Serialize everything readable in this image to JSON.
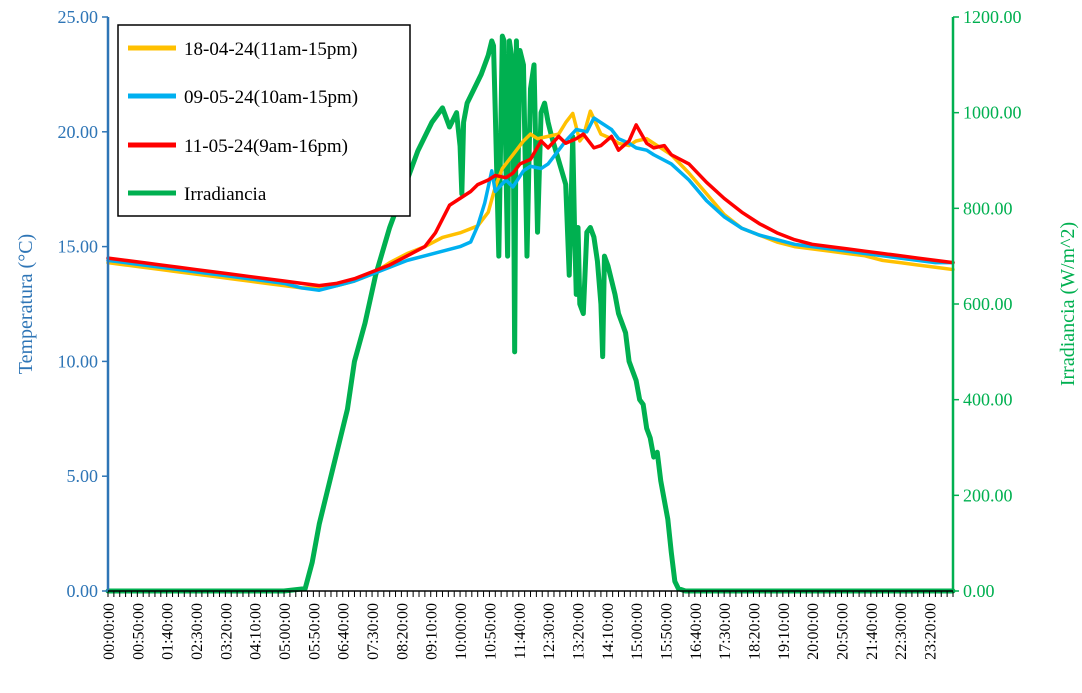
{
  "chart_data": {
    "type": "line",
    "ylabel": "Temperatura (°C)",
    "y2label": "Irradiancia (W/m^2)",
    "ylim": [
      0,
      25
    ],
    "y2lim": [
      0,
      1200
    ],
    "yticks": [
      "0.00",
      "5.00",
      "10.00",
      "15.00",
      "20.00",
      "25.00"
    ],
    "y2ticks": [
      "0.00",
      "200.00",
      "400.00",
      "600.00",
      "800.00",
      "1000.00",
      "1200.00"
    ],
    "x_tick_labels": [
      "00:00:00",
      "00:50:00",
      "01:40:00",
      "02:30:00",
      "03:20:00",
      "04:10:00",
      "05:00:00",
      "05:50:00",
      "06:40:00",
      "07:30:00",
      "08:20:00",
      "09:10:00",
      "10:00:00",
      "10:50:00",
      "11:40:00",
      "12:30:00",
      "13:20:00",
      "14:10:00",
      "15:00:00",
      "15:50:00",
      "16:40:00",
      "17:30:00",
      "18:20:00",
      "19:10:00",
      "20:00:00",
      "20:50:00",
      "21:40:00",
      "22:30:00",
      "23:20:00"
    ],
    "x_tick_hours": [
      0,
      0.8333,
      1.6667,
      2.5,
      3.3333,
      4.1667,
      5,
      5.8333,
      6.6667,
      7.5,
      8.3333,
      9.1667,
      10,
      10.8333,
      11.6667,
      12.5,
      13.3333,
      14.1667,
      15,
      15.8333,
      16.6667,
      17.5,
      18.3333,
      19.1667,
      20,
      20.8333,
      21.6667,
      22.5,
      23.3333
    ],
    "xlim_hours": [
      0,
      24
    ],
    "legend_position": "top-left",
    "series": [
      {
        "name": "18-04-24(11am-15pm)",
        "axis": "left",
        "color": "#ffc000",
        "x": [
          0,
          0.5,
          1,
          1.5,
          2,
          2.5,
          3,
          3.5,
          4,
          4.5,
          5,
          5.5,
          6,
          6.5,
          7,
          7.5,
          8,
          8.5,
          9,
          9.5,
          10,
          10.5,
          10.8,
          11,
          11.2,
          11.5,
          11.8,
          12,
          12.2,
          12.5,
          12.8,
          13,
          13.2,
          13.4,
          13.5,
          13.7,
          14,
          14.3,
          14.5,
          14.8,
          15,
          15.3,
          15.5,
          16,
          16.5,
          17,
          17.5,
          18,
          18.5,
          19,
          19.5,
          20,
          20.5,
          21,
          21.5,
          22,
          22.5,
          23,
          23.5,
          24
        ],
        "y": [
          14.3,
          14.2,
          14.1,
          14.0,
          13.9,
          13.8,
          13.7,
          13.6,
          13.5,
          13.4,
          13.3,
          13.2,
          13.2,
          13.3,
          13.5,
          13.8,
          14.3,
          14.7,
          15.0,
          15.4,
          15.6,
          15.9,
          16.5,
          17.6,
          18.4,
          19.0,
          19.6,
          19.9,
          19.7,
          19.8,
          19.9,
          20.4,
          20.8,
          19.6,
          19.8,
          20.9,
          19.9,
          19.7,
          19.5,
          19.4,
          19.6,
          19.7,
          19.5,
          19.0,
          18.2,
          17.3,
          16.4,
          15.8,
          15.5,
          15.2,
          15.0,
          14.9,
          14.8,
          14.7,
          14.6,
          14.4,
          14.3,
          14.2,
          14.1,
          14.0
        ]
      },
      {
        "name": "09-05-24(10am-15pm)",
        "axis": "left",
        "color": "#00b0f0",
        "x": [
          0,
          0.5,
          1,
          1.5,
          2,
          2.5,
          3,
          3.5,
          4,
          4.5,
          5,
          5.5,
          6,
          6.5,
          7,
          7.5,
          8,
          8.5,
          9,
          9.5,
          10,
          10.3,
          10.5,
          10.7,
          10.9,
          11,
          11.3,
          11.5,
          11.8,
          12,
          12.3,
          12.5,
          12.8,
          13,
          13.3,
          13.6,
          13.8,
          14,
          14.3,
          14.5,
          14.8,
          15,
          15.3,
          15.5,
          16,
          16.5,
          17,
          17.5,
          18,
          18.5,
          19,
          19.5,
          20,
          20.5,
          21,
          21.5,
          22,
          22.5,
          23,
          23.5,
          24
        ],
        "y": [
          14.4,
          14.3,
          14.2,
          14.1,
          14.0,
          13.9,
          13.8,
          13.7,
          13.6,
          13.5,
          13.4,
          13.2,
          13.1,
          13.3,
          13.5,
          13.8,
          14.1,
          14.4,
          14.6,
          14.8,
          15.0,
          15.2,
          15.9,
          16.9,
          18.3,
          17.4,
          17.9,
          17.6,
          18.3,
          18.5,
          18.4,
          18.6,
          19.2,
          19.6,
          20.1,
          20.0,
          20.6,
          20.4,
          20.1,
          19.7,
          19.5,
          19.3,
          19.2,
          19.0,
          18.6,
          17.9,
          17.0,
          16.3,
          15.8,
          15.5,
          15.3,
          15.1,
          15.0,
          14.9,
          14.8,
          14.7,
          14.6,
          14.5,
          14.4,
          14.3,
          14.3
        ]
      },
      {
        "name": "11-05-24(9am-16pm)",
        "axis": "left",
        "color": "#ff0000",
        "x": [
          0,
          0.5,
          1,
          1.5,
          2,
          2.5,
          3,
          3.5,
          4,
          4.5,
          5,
          5.5,
          6,
          6.5,
          7,
          7.5,
          8,
          8.5,
          9,
          9.3,
          9.5,
          9.7,
          10,
          10.3,
          10.5,
          10.8,
          11,
          11.3,
          11.5,
          11.7,
          12,
          12.3,
          12.5,
          12.8,
          13,
          13.3,
          13.5,
          13.8,
          14,
          14.3,
          14.5,
          14.8,
          15,
          15.3,
          15.5,
          15.8,
          16,
          16.5,
          17,
          17.5,
          18,
          18.5,
          19,
          19.5,
          20,
          20.5,
          21,
          21.5,
          22,
          22.5,
          23,
          23.5,
          24
        ],
        "y": [
          14.5,
          14.4,
          14.3,
          14.2,
          14.1,
          14.0,
          13.9,
          13.8,
          13.7,
          13.6,
          13.5,
          13.4,
          13.3,
          13.4,
          13.6,
          13.9,
          14.2,
          14.6,
          15.0,
          15.6,
          16.2,
          16.8,
          17.1,
          17.4,
          17.7,
          17.9,
          18.1,
          18.0,
          18.2,
          18.6,
          18.8,
          19.6,
          19.3,
          19.8,
          19.5,
          19.7,
          19.9,
          19.3,
          19.4,
          19.8,
          19.2,
          19.6,
          20.3,
          19.5,
          19.3,
          19.4,
          19.0,
          18.6,
          17.8,
          17.1,
          16.5,
          16.0,
          15.6,
          15.3,
          15.1,
          15.0,
          14.9,
          14.8,
          14.7,
          14.6,
          14.5,
          14.4,
          14.3
        ]
      },
      {
        "name": "Irradiancia",
        "axis": "right",
        "color": "#00b050",
        "x": [
          0,
          5,
          5.6,
          5.8,
          6.0,
          6.2,
          6.4,
          6.6,
          6.8,
          7.0,
          7.3,
          7.6,
          8.0,
          8.4,
          8.8,
          9.2,
          9.5,
          9.7,
          9.9,
          10.0,
          10.05,
          10.1,
          10.2,
          10.4,
          10.6,
          10.8,
          10.9,
          10.95,
          11.0,
          11.1,
          11.2,
          11.25,
          11.3,
          11.35,
          11.4,
          11.5,
          11.55,
          11.6,
          11.65,
          11.7,
          11.8,
          11.9,
          12.0,
          12.1,
          12.2,
          12.3,
          12.4,
          12.5,
          12.6,
          12.8,
          13.0,
          13.1,
          13.2,
          13.25,
          13.3,
          13.35,
          13.4,
          13.5,
          13.6,
          13.7,
          13.8,
          13.9,
          14.0,
          14.05,
          14.1,
          14.2,
          14.3,
          14.4,
          14.5,
          14.6,
          14.7,
          14.8,
          14.9,
          15.0,
          15.1,
          15.2,
          15.3,
          15.4,
          15.5,
          15.6,
          15.7,
          15.8,
          15.9,
          16.0,
          16.1,
          16.2,
          16.4,
          16.6,
          16.8,
          17.0,
          17.5,
          18,
          19,
          20,
          21,
          22,
          23,
          24
        ],
        "y": [
          0,
          0,
          5,
          60,
          140,
          200,
          260,
          320,
          380,
          480,
          560,
          660,
          760,
          840,
          920,
          980,
          1010,
          970,
          1000,
          930,
          830,
          980,
          1020,
          1050,
          1080,
          1120,
          1150,
          1140,
          1000,
          700,
          1160,
          1150,
          900,
          700,
          1150,
          1100,
          500,
          1150,
          900,
          1130,
          1100,
          700,
          1050,
          1100,
          750,
          1000,
          1020,
          980,
          950,
          900,
          850,
          660,
          950,
          760,
          620,
          760,
          600,
          580,
          750,
          760,
          740,
          690,
          600,
          490,
          700,
          680,
          650,
          620,
          580,
          560,
          540,
          480,
          460,
          440,
          400,
          390,
          340,
          320,
          280,
          290,
          230,
          190,
          150,
          80,
          20,
          5,
          0,
          0,
          0,
          0,
          0,
          0,
          0,
          0,
          0,
          0,
          0,
          0
        ]
      }
    ]
  }
}
